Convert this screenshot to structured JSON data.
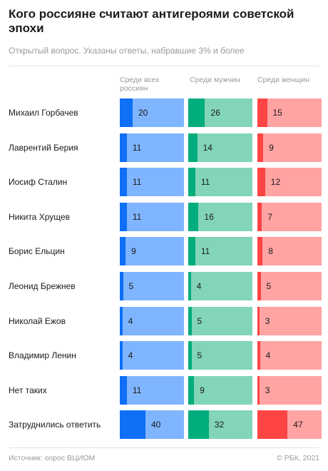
{
  "header": {
    "title": "Кого россияне считают антигероями советской эпохи",
    "subtitle": "Открытый вопрос. Указаны ответы, набравшие 3% и более"
  },
  "footer": {
    "source": "Источник: опрос ВЦИОМ",
    "copyright": "© РБК, 2021"
  },
  "colors": {
    "all_fill": "#0f6ff5",
    "all_bg": "#7fb5ff",
    "men_fill": "#00ad7c",
    "men_bg": "#82d5b9",
    "women_fill": "#ff4444",
    "women_bg": "#ffa3a3"
  },
  "chart_data": {
    "type": "bar",
    "orientation": "horizontal",
    "title": "Кого россияне считают антигероями советской эпохи",
    "subtitle": "Открытый вопрос. Указаны ответы, набравшие 3% и более",
    "categories": [
      "Михаил Горбачев",
      "Лаврентий Берия",
      "Иосиф Сталин",
      "Никита Хрущев",
      "Борис Ельцин",
      "Леонид Брежнев",
      "Николай Ежов",
      "Владимир Ленин",
      "Нет таких",
      "Затруднились ответить"
    ],
    "series": [
      {
        "name": "Среди всех россиян",
        "values": [
          20,
          11,
          11,
          11,
          9,
          5,
          4,
          4,
          11,
          40
        ]
      },
      {
        "name": "Среди мужчин",
        "values": [
          26,
          14,
          11,
          16,
          11,
          4,
          5,
          5,
          9,
          32
        ]
      },
      {
        "name": "Среди женщин",
        "values": [
          15,
          9,
          12,
          7,
          8,
          5,
          3,
          4,
          3,
          47
        ]
      }
    ],
    "xlim": [
      0,
      100
    ]
  }
}
